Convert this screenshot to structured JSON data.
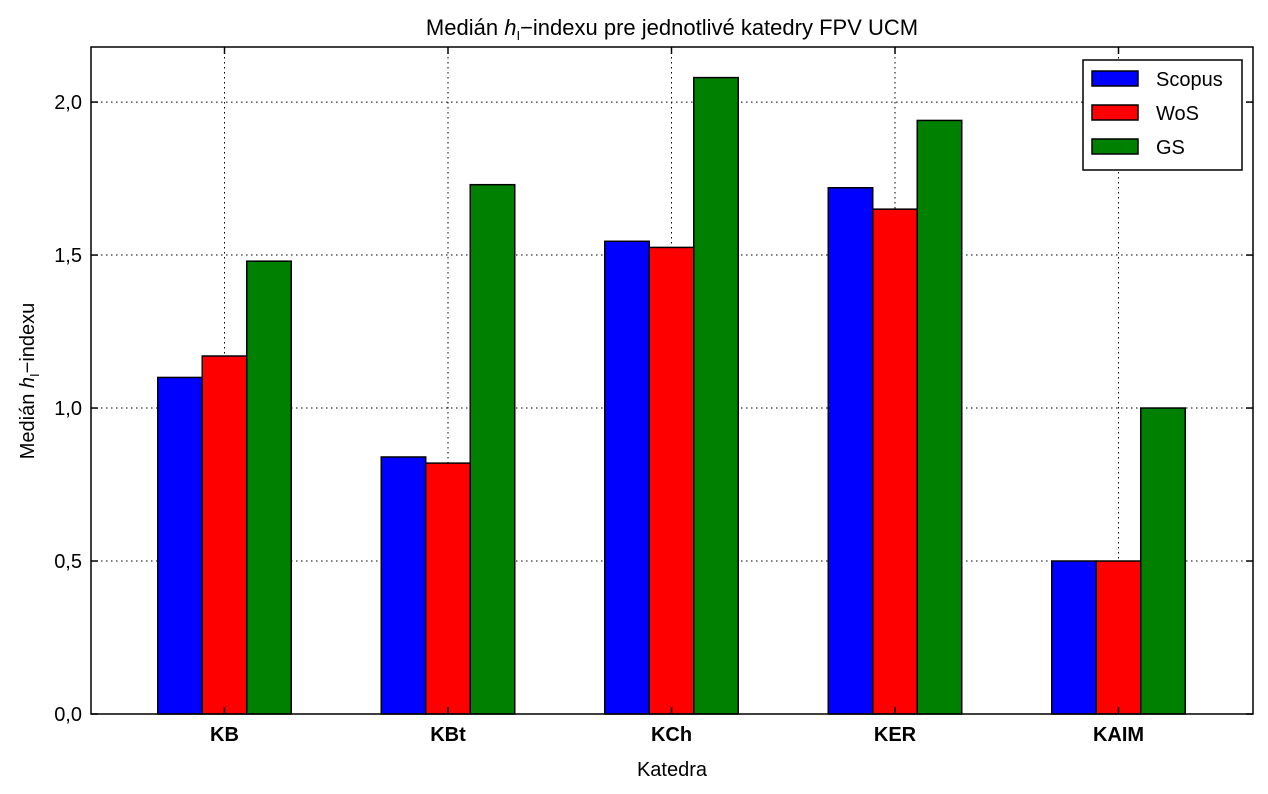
{
  "chart_data": {
    "type": "bar",
    "title": "Medián h₁−indexu pre jednotlivé katedry FPV UCM",
    "title_parts": {
      "pre": "Medián ",
      "h": "h",
      "sub": "I",
      "post": "−indexu pre jednotlivé katedry FPV UCM"
    },
    "xlabel": "Katedra",
    "ylabel": "Medián h₁−indexu",
    "ylabel_parts": {
      "pre": "Medián ",
      "h": "h",
      "sub": "I",
      "post": "−indexu"
    },
    "categories": [
      "KB",
      "KBt",
      "KCh",
      "KER",
      "KAIM"
    ],
    "series": [
      {
        "name": "Scopus",
        "color": "#0000ff",
        "values": [
          1.1,
          0.84,
          1.545,
          1.72,
          0.5
        ]
      },
      {
        "name": "WoS",
        "color": "#ff0000",
        "values": [
          1.17,
          0.82,
          1.525,
          1.65,
          0.5
        ]
      },
      {
        "name": "GS",
        "color": "#008000",
        "values": [
          1.48,
          1.73,
          2.08,
          1.94,
          1.0
        ]
      }
    ],
    "ylim": [
      0,
      2.18
    ],
    "yticks": [
      0,
      0.5,
      1.0,
      1.5,
      2.0
    ],
    "ytick_labels": [
      "0,0",
      "0,5",
      "1,0",
      "1,5",
      "2,0"
    ],
    "grid": true,
    "legend_position": "top-right"
  }
}
